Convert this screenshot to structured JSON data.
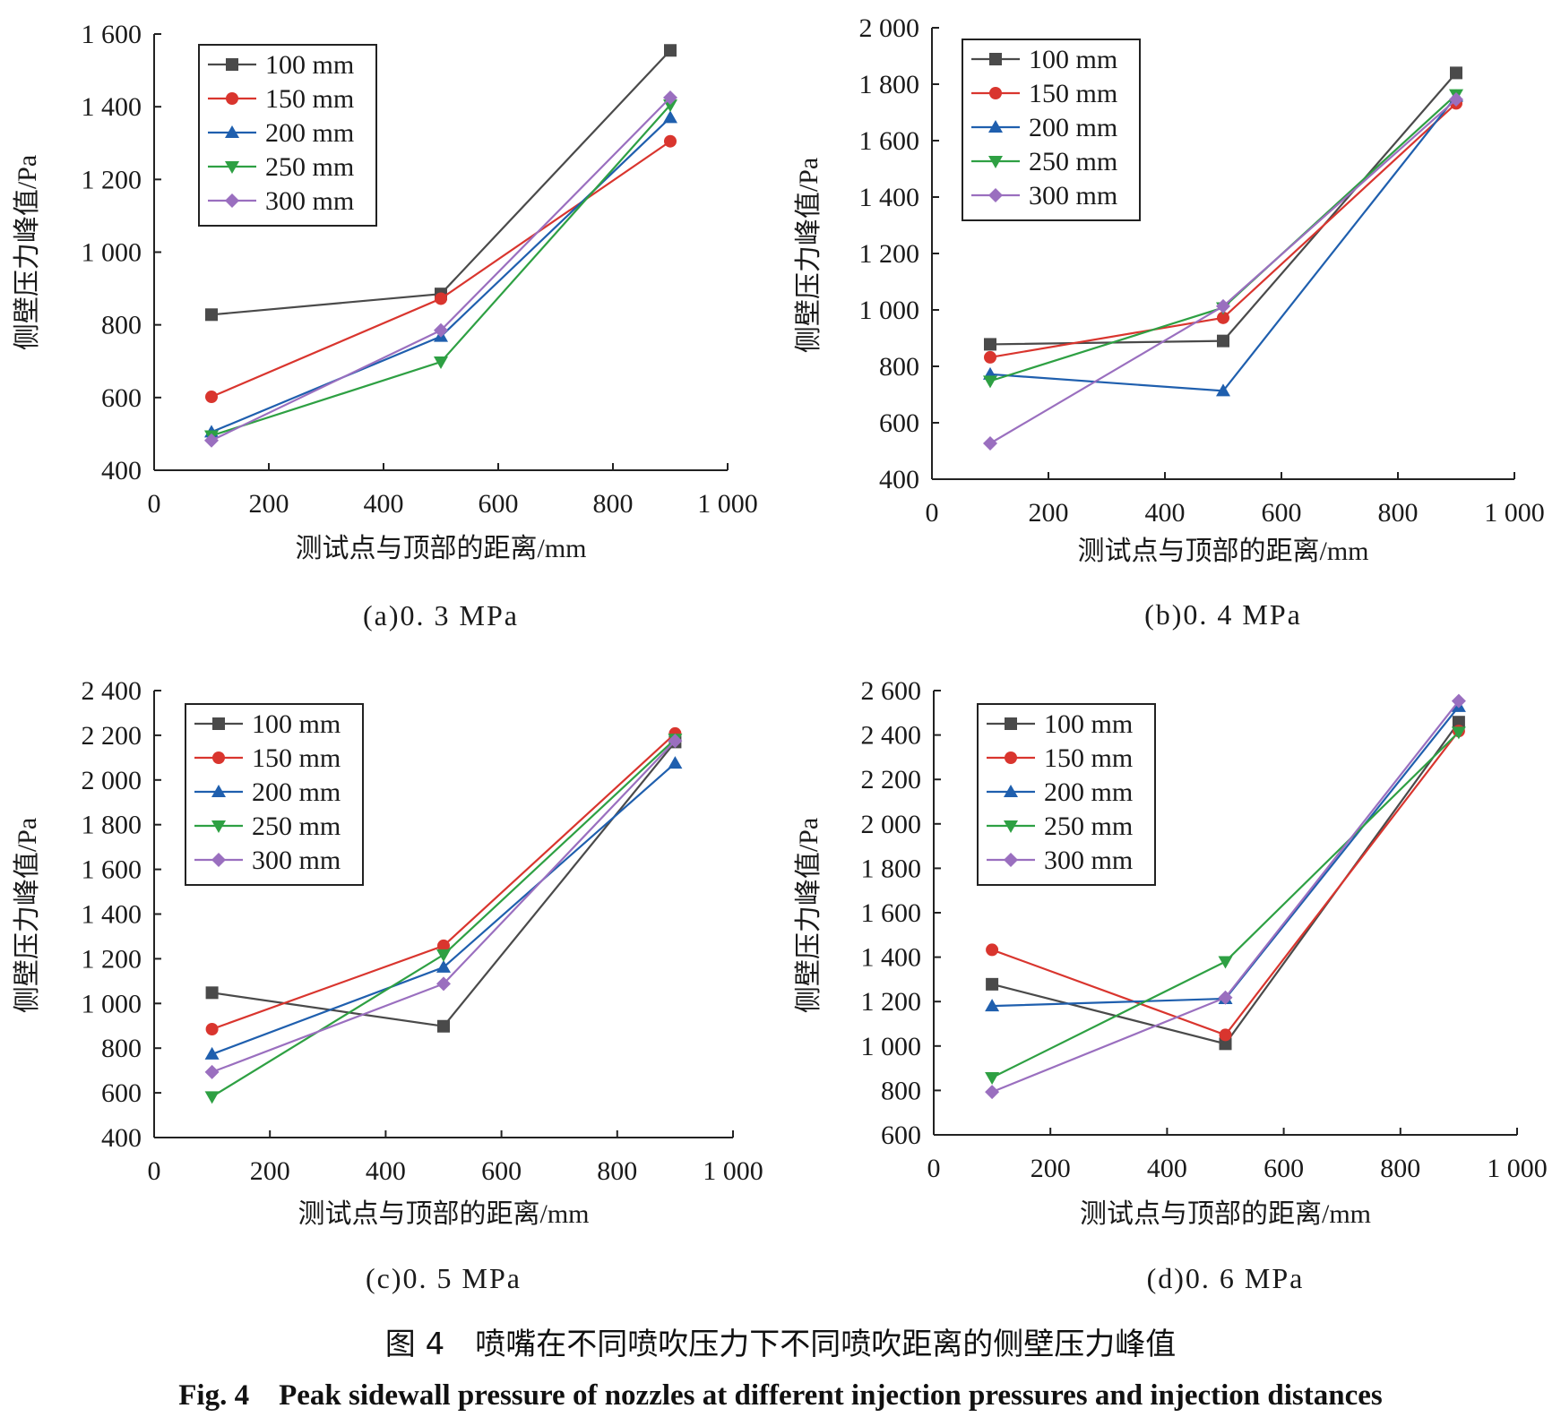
{
  "figure": {
    "caption_cn": "图 4　喷嘴在不同喷吹压力下不同喷吹距离的侧壁压力峰值",
    "caption_en": "Fig. 4　Peak sidewall pressure of nozzles at different injection pressures and injection distances"
  },
  "series_styles": [
    {
      "name": "100 mm",
      "color": "#4a4a4a",
      "marker": "square"
    },
    {
      "name": "150 mm",
      "color": "#d9352e",
      "marker": "circle"
    },
    {
      "name": "200 mm",
      "color": "#1f5fae",
      "marker": "triangle-up"
    },
    {
      "name": "250 mm",
      "color": "#2ea043",
      "marker": "triangle-down"
    },
    {
      "name": "300 mm",
      "color": "#9a6fbf",
      "marker": "diamond"
    }
  ],
  "chart_data": [
    {
      "type": "line",
      "caption": "(a)0. 3 MPa",
      "xlabel": "测试点与顶部的距离/mm",
      "ylabel": "侧壁压力峰值/Pa",
      "xlim": [
        0,
        1000
      ],
      "ylim": [
        400,
        1600
      ],
      "xticks": [
        0,
        200,
        400,
        600,
        800,
        1000
      ],
      "xtick_labels": [
        "0",
        "200",
        "400",
        "600",
        "800",
        "1 000"
      ],
      "yticks": [
        400,
        600,
        800,
        1000,
        1200,
        1400,
        1600
      ],
      "ytick_labels": [
        "400",
        "600",
        "800",
        "1 000",
        "1 200",
        "1 400",
        "1 600"
      ],
      "legend": "top-left",
      "x": [
        100,
        500,
        900
      ],
      "series": [
        {
          "name": "100 mm",
          "values": [
            828,
            885,
            1555
          ]
        },
        {
          "name": "150 mm",
          "values": [
            602,
            872,
            1305
          ]
        },
        {
          "name": "200 mm",
          "values": [
            505,
            768,
            1370
          ]
        },
        {
          "name": "250 mm",
          "values": [
            495,
            698,
            1405
          ]
        },
        {
          "name": "300 mm",
          "values": [
            482,
            785,
            1425
          ]
        }
      ]
    },
    {
      "type": "line",
      "caption": "(b)0. 4 MPa",
      "xlabel": "测试点与顶部的距离/mm",
      "ylabel": "侧壁压力峰值/Pa",
      "xlim": [
        0,
        1000
      ],
      "ylim": [
        400,
        2000
      ],
      "xticks": [
        0,
        200,
        400,
        600,
        800,
        1000
      ],
      "xtick_labels": [
        "0",
        "200",
        "400",
        "600",
        "800",
        "1 000"
      ],
      "yticks": [
        400,
        600,
        800,
        1000,
        1200,
        1400,
        1600,
        1800,
        2000
      ],
      "ytick_labels": [
        "400",
        "600",
        "800",
        "1 000",
        "1 200",
        "1 400",
        "1 600",
        "1 800",
        "2 000"
      ],
      "legend": "top-left",
      "x": [
        100,
        500,
        900
      ],
      "series": [
        {
          "name": "100 mm",
          "values": [
            878,
            890,
            1840
          ]
        },
        {
          "name": "150 mm",
          "values": [
            832,
            972,
            1732
          ]
        },
        {
          "name": "200 mm",
          "values": [
            772,
            713,
            1757
          ]
        },
        {
          "name": "250 mm",
          "values": [
            748,
            1008,
            1763
          ]
        },
        {
          "name": "300 mm",
          "values": [
            527,
            1013,
            1746
          ]
        }
      ]
    },
    {
      "type": "line",
      "caption": "(c)0. 5 MPa",
      "xlabel": "测试点与顶部的距离/mm",
      "ylabel": "侧壁压力峰值/Pa",
      "xlim": [
        0,
        1000
      ],
      "ylim": [
        400,
        2400
      ],
      "xticks": [
        0,
        200,
        400,
        600,
        800,
        1000
      ],
      "xtick_labels": [
        "0",
        "200",
        "400",
        "600",
        "800",
        "1 000"
      ],
      "yticks": [
        400,
        600,
        800,
        1000,
        1200,
        1400,
        1600,
        1800,
        2000,
        2200,
        2400
      ],
      "ytick_labels": [
        "400",
        "600",
        "800",
        "1 000",
        "1 200",
        "1 400",
        "1 600",
        "1 800",
        "2 000",
        "2 200",
        "2 400"
      ],
      "legend": "top-left",
      "x": [
        100,
        500,
        900
      ],
      "series": [
        {
          "name": "100 mm",
          "values": [
            1048,
            898,
            2170
          ]
        },
        {
          "name": "150 mm",
          "values": [
            885,
            1258,
            2208
          ]
        },
        {
          "name": "200 mm",
          "values": [
            773,
            1162,
            2075
          ]
        },
        {
          "name": "250 mm",
          "values": [
            583,
            1218,
            2183
          ]
        },
        {
          "name": "300 mm",
          "values": [
            693,
            1088,
            2175
          ]
        }
      ]
    },
    {
      "type": "line",
      "caption": "(d)0. 6 MPa",
      "xlabel": "测试点与顶部的距离/mm",
      "ylabel": "侧壁压力峰值/Pa",
      "xlim": [
        0,
        1000
      ],
      "ylim": [
        600,
        2600
      ],
      "xticks": [
        0,
        200,
        400,
        600,
        800,
        1000
      ],
      "xtick_labels": [
        "0",
        "200",
        "400",
        "600",
        "800",
        "1 000"
      ],
      "yticks": [
        600,
        800,
        1000,
        1200,
        1400,
        1600,
        1800,
        2000,
        2200,
        2400,
        2600
      ],
      "ytick_labels": [
        "600",
        "800",
        "1 000",
        "1 200",
        "1 400",
        "1 600",
        "1 800",
        "2 000",
        "2 200",
        "2 400",
        "2 600"
      ],
      "legend": "top-left",
      "x": [
        100,
        500,
        900
      ],
      "series": [
        {
          "name": "100 mm",
          "values": [
            1278,
            1010,
            2458
          ]
        },
        {
          "name": "150 mm",
          "values": [
            1433,
            1050,
            2418
          ]
        },
        {
          "name": "200 mm",
          "values": [
            1180,
            1213,
            2528
          ]
        },
        {
          "name": "250 mm",
          "values": [
            858,
            1380,
            2413
          ]
        },
        {
          "name": "300 mm",
          "values": [
            793,
            1218,
            2553
          ]
        }
      ]
    }
  ]
}
